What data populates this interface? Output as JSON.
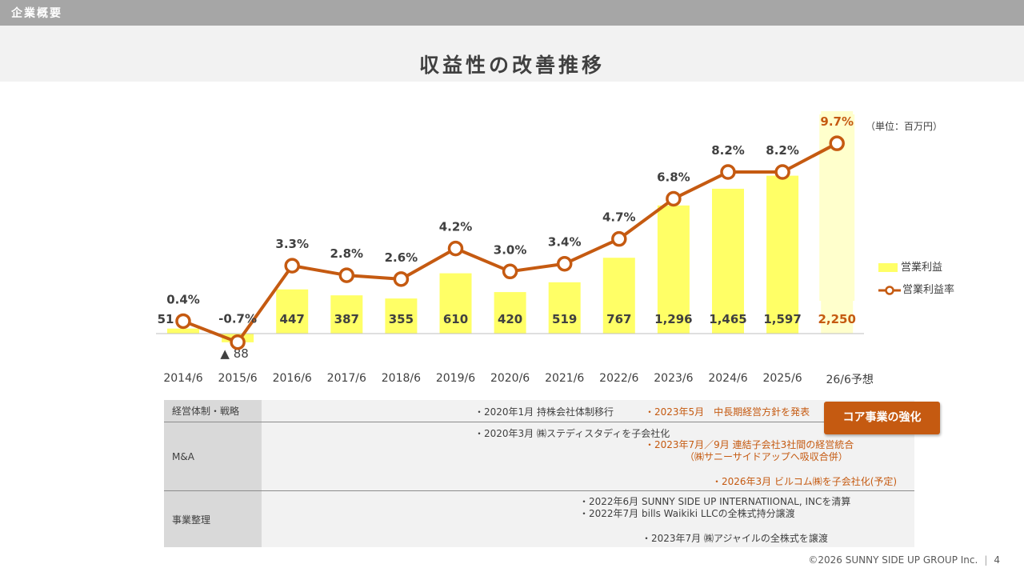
{
  "header": {
    "section": "企業概要",
    "title": "収益性の改善推移"
  },
  "chart_data": {
    "type": "bar+line",
    "categories": [
      "2014/6",
      "2015/6",
      "2016/6",
      "2017/6",
      "2018/6",
      "2019/6",
      "2020/6",
      "2021/6",
      "2022/6",
      "2023/6",
      "2024/6",
      "2025/6",
      "26/6予想"
    ],
    "bar_labels": [
      "51",
      "▲ 88",
      "447",
      "387",
      "355",
      "610",
      "420",
      "519",
      "767",
      "1,296",
      "1,465",
      "1,597",
      "2,250"
    ],
    "series": [
      {
        "name": "営業利益",
        "axis": "left",
        "values": [
          51,
          -88,
          447,
          387,
          355,
          610,
          420,
          519,
          767,
          1296,
          1465,
          1597,
          2250
        ]
      },
      {
        "name": "営業利益率",
        "axis": "right",
        "values": [
          0.4,
          -0.7,
          3.3,
          2.8,
          2.6,
          4.2,
          3.0,
          3.4,
          4.7,
          6.8,
          8.2,
          8.2,
          9.7
        ]
      }
    ],
    "rate_labels": [
      "0.4%",
      "-0.7%",
      "3.3%",
      "2.8%",
      "2.6%",
      "4.2%",
      "3.0%",
      "3.4%",
      "4.7%",
      "6.8%",
      "8.2%",
      "8.2%",
      "9.7%"
    ],
    "forecast_index": 12,
    "unit": "（単位：百万円）",
    "colors": {
      "bar": "#ffff66",
      "bar_forecast": "#ffffcc",
      "line": "#c55a11",
      "marker_fill": "#ffffff",
      "forecast_label": "#c55a11"
    }
  },
  "legend": {
    "bar": "営業利益",
    "line": "営業利益率"
  },
  "table": {
    "rows": [
      {
        "label": "経営体制・戦略"
      },
      {
        "label": "M&A"
      },
      {
        "label": "事業整理"
      }
    ],
    "notes": {
      "n1": "・2020年1月 持株会社体制移行",
      "n2": "・2023年5月　中長期経営方針を発表",
      "n3": "・2020年3月 ㈱ステディスタディを子会社化",
      "n4": "・2023年7月／9月 連結子会社3社間の経営統合",
      "n5": "（㈱サニーサイドアップへ吸収合併）",
      "n6": "・2026年3月 ビルコム㈱を子会社化(予定)",
      "n7": "・2022年6月 SUNNY SIDE UP INTERNATIIONAL, INCを清算",
      "n8": "・2022年7月 bills Waikiki LLCの全株式持分譲渡",
      "n9": "・2023年7月 ㈱アジャイルの全株式を譲渡"
    },
    "badge": "コア事業の強化"
  },
  "footer": {
    "copyright": "©2026 SUNNY SIDE UP GROUP Inc.",
    "page": "4"
  }
}
